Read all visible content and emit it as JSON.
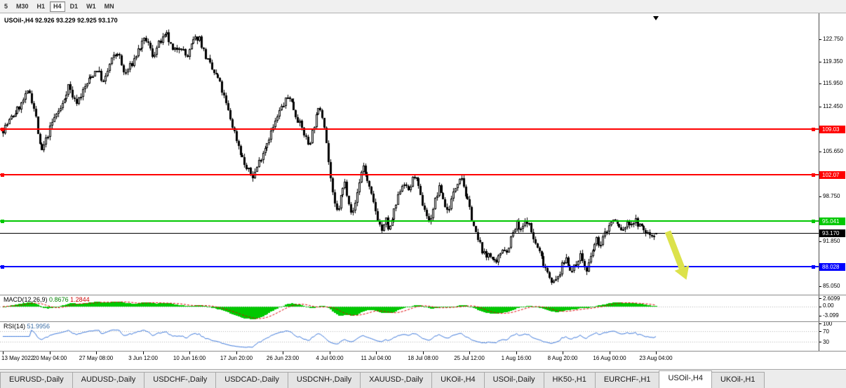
{
  "window": {
    "title": "USOil-,H4"
  },
  "toolbar": {
    "periods": [
      {
        "label": "5",
        "active": false
      },
      {
        "label": "M30",
        "active": false
      },
      {
        "label": "H1",
        "active": false
      },
      {
        "label": "H4",
        "active": true
      },
      {
        "label": "D1",
        "active": false
      },
      {
        "label": "W1",
        "active": false
      },
      {
        "label": "MN",
        "active": false
      }
    ]
  },
  "chart": {
    "title": "USOil-,H4 92.926 93.229 92.925 93.170"
  },
  "indicators": {
    "macd": {
      "name": "MACD(12,26,9)",
      "value_main": "0.8676",
      "value_signal": "1.2844",
      "axis_labels": [
        "2.6099",
        "0.00",
        "-3.099"
      ],
      "hist_color": "#00c800",
      "signal_color": "#e00000"
    },
    "rsi": {
      "name": "RSI(14)",
      "value": "51.9956",
      "axis_labels": [
        "100",
        "70",
        "30"
      ],
      "line_color": "#3c78dc"
    }
  },
  "tabs": [
    {
      "label": "EURUSD-,Daily",
      "active": false
    },
    {
      "label": "AUDUSD-,Daily",
      "active": false
    },
    {
      "label": "USDCHF-,Daily",
      "active": false
    },
    {
      "label": "USDCAD-,Daily",
      "active": false
    },
    {
      "label": "USDCNH-,Daily",
      "active": false
    },
    {
      "label": "XAUUSD-,Daily",
      "active": false
    },
    {
      "label": "UKOil-,H4",
      "active": false
    },
    {
      "label": "USOil-,Daily",
      "active": false
    },
    {
      "label": "HK50-,H1",
      "active": false
    },
    {
      "label": "EURCHF-,H1",
      "active": false
    },
    {
      "label": "USOil-,H4",
      "active": true
    },
    {
      "label": "UKOil-,H1",
      "active": false
    }
  ],
  "chart_data": {
    "type": "candlestick",
    "symbol": "USOil-",
    "timeframe": "H4",
    "last_candle": {
      "open": 92.926,
      "high": 93.229,
      "low": 92.925,
      "close": 93.17
    },
    "price_axis_labels": [
      "122.750",
      "119.350",
      "115.950",
      "112.450",
      "105.650",
      "98.750",
      "91.850",
      "85.050"
    ],
    "horizontal_lines": [
      {
        "price": 109.03,
        "label": "109.03",
        "color": "#ff0000"
      },
      {
        "price": 102.07,
        "label": "102.07",
        "color": "#ff0000"
      },
      {
        "price": 95.041,
        "label": "95.041",
        "color": "#00c800"
      },
      {
        "price": 88.028,
        "label": "88.028",
        "color": "#0000ff"
      }
    ],
    "current_price": {
      "price": 93.17,
      "label": "93.170",
      "color": "#000000"
    },
    "time_labels": [
      "13 May 2022",
      "20 May 04:00",
      "27 May 08:00",
      "3 Jun 12:00",
      "10 Jun 16:00",
      "17 Jun 20:00",
      "26 Jun 23:00",
      "4 Jul 00:00",
      "11 Jul 04:00",
      "18 Jul 08:00",
      "25 Jul 12:00",
      "1 Aug 16:00",
      "8 Aug 20:00",
      "16 Aug 00:00",
      "23 Aug 04:00"
    ],
    "candle_count": 320,
    "bull_color": "#ffffff",
    "bear_color": "#000000",
    "outline_color": "#000000",
    "rsi_levels": [
      70,
      30
    ],
    "macd_summary": {
      "params": [
        12,
        26,
        9
      ],
      "current_main": 0.8676,
      "current_signal": 1.2844,
      "axis_max": 2.6099,
      "axis_min": -3.099
    },
    "rsi_summary": {
      "period": 14,
      "current": 51.9956
    },
    "annotation_arrow": {
      "shape": "down-right-arrow",
      "color": "#dce24b"
    },
    "price_path_anchors": [
      [
        0.0,
        109.0
      ],
      [
        0.013,
        110.8
      ],
      [
        0.028,
        112.8
      ],
      [
        0.04,
        115.0
      ],
      [
        0.049,
        111.5
      ],
      [
        0.058,
        105.2
      ],
      [
        0.068,
        108.0
      ],
      [
        0.079,
        111.0
      ],
      [
        0.09,
        112.5
      ],
      [
        0.1,
        115.8
      ],
      [
        0.111,
        113.0
      ],
      [
        0.122,
        114.8
      ],
      [
        0.133,
        116.8
      ],
      [
        0.144,
        118.3
      ],
      [
        0.154,
        116.0
      ],
      [
        0.165,
        119.5
      ],
      [
        0.176,
        120.8
      ],
      [
        0.186,
        117.3
      ],
      [
        0.197,
        119.0
      ],
      [
        0.208,
        121.3
      ],
      [
        0.219,
        122.8
      ],
      [
        0.229,
        120.3
      ],
      [
        0.24,
        122.3
      ],
      [
        0.251,
        123.3
      ],
      [
        0.261,
        120.6
      ],
      [
        0.271,
        122.0
      ],
      [
        0.281,
        119.8
      ],
      [
        0.291,
        122.4
      ],
      [
        0.3,
        123.2
      ],
      [
        0.309,
        120.4
      ],
      [
        0.32,
        118.0
      ],
      [
        0.33,
        116.6
      ],
      [
        0.341,
        113.0
      ],
      [
        0.351,
        109.6
      ],
      [
        0.362,
        106.0
      ],
      [
        0.372,
        103.0
      ],
      [
        0.383,
        101.8
      ],
      [
        0.394,
        104.6
      ],
      [
        0.404,
        107.0
      ],
      [
        0.415,
        109.6
      ],
      [
        0.426,
        112.3
      ],
      [
        0.438,
        114.2
      ],
      [
        0.447,
        111.6
      ],
      [
        0.458,
        109.0
      ],
      [
        0.468,
        106.6
      ],
      [
        0.476,
        109.6
      ],
      [
        0.485,
        112.6
      ],
      [
        0.492,
        110.0
      ],
      [
        0.499,
        103.6
      ],
      [
        0.506,
        97.8
      ],
      [
        0.512,
        96.2
      ],
      [
        0.518,
        99.0
      ],
      [
        0.523,
        101.0
      ],
      [
        0.529,
        98.4
      ],
      [
        0.535,
        95.8
      ],
      [
        0.541,
        98.6
      ],
      [
        0.547,
        102.0
      ],
      [
        0.552,
        103.5
      ],
      [
        0.558,
        101.0
      ],
      [
        0.564,
        98.8
      ],
      [
        0.57,
        96.8
      ],
      [
        0.576,
        94.6
      ],
      [
        0.581,
        93.3
      ],
      [
        0.586,
        95.2
      ],
      [
        0.591,
        93.3
      ],
      [
        0.597,
        95.8
      ],
      [
        0.603,
        97.8
      ],
      [
        0.608,
        99.8
      ],
      [
        0.614,
        101.2
      ],
      [
        0.619,
        99.3
      ],
      [
        0.625,
        100.8
      ],
      [
        0.63,
        102.2
      ],
      [
        0.636,
        100.0
      ],
      [
        0.641,
        98.0
      ],
      [
        0.647,
        96.6
      ],
      [
        0.652,
        94.7
      ],
      [
        0.658,
        96.8
      ],
      [
        0.663,
        98.8
      ],
      [
        0.669,
        100.2
      ],
      [
        0.675,
        98.0
      ],
      [
        0.68,
        96.5
      ],
      [
        0.686,
        98.0
      ],
      [
        0.691,
        99.6
      ],
      [
        0.696,
        101.2
      ],
      [
        0.701,
        102.4
      ],
      [
        0.707,
        99.6
      ],
      [
        0.712,
        97.6
      ],
      [
        0.718,
        95.6
      ],
      [
        0.723,
        93.3
      ],
      [
        0.728,
        91.8
      ],
      [
        0.734,
        90.6
      ],
      [
        0.739,
        89.2
      ],
      [
        0.744,
        90.5
      ],
      [
        0.75,
        88.9
      ],
      [
        0.755,
        88.1
      ],
      [
        0.76,
        89.8
      ],
      [
        0.766,
        91.3
      ],
      [
        0.771,
        90.1
      ],
      [
        0.776,
        92.0
      ],
      [
        0.782,
        93.4
      ],
      [
        0.787,
        94.6
      ],
      [
        0.792,
        93.1
      ],
      [
        0.797,
        94.4
      ],
      [
        0.803,
        95.2
      ],
      [
        0.808,
        93.5
      ],
      [
        0.813,
        92.0
      ],
      [
        0.819,
        90.7
      ],
      [
        0.824,
        89.5
      ],
      [
        0.829,
        88.3
      ],
      [
        0.835,
        87.1
      ],
      [
        0.84,
        86.0
      ],
      [
        0.845,
        85.5
      ],
      [
        0.851,
        86.8
      ],
      [
        0.856,
        88.2
      ],
      [
        0.862,
        89.4
      ],
      [
        0.867,
        88.2
      ],
      [
        0.872,
        87.2
      ],
      [
        0.878,
        88.6
      ],
      [
        0.883,
        90.0
      ],
      [
        0.888,
        88.8
      ],
      [
        0.893,
        87.0
      ],
      [
        0.899,
        89.2
      ],
      [
        0.904,
        91.0
      ],
      [
        0.91,
        92.2
      ],
      [
        0.915,
        91.2
      ],
      [
        0.92,
        92.8
      ],
      [
        0.926,
        94.0
      ],
      [
        0.931,
        94.9
      ],
      [
        0.936,
        95.2
      ],
      [
        0.942,
        94.2
      ],
      [
        0.947,
        93.5
      ],
      [
        0.957,
        94.6
      ],
      [
        0.968,
        95.0
      ],
      [
        0.978,
        93.9
      ],
      [
        0.989,
        92.9
      ],
      [
        1.0,
        93.17
      ]
    ]
  }
}
